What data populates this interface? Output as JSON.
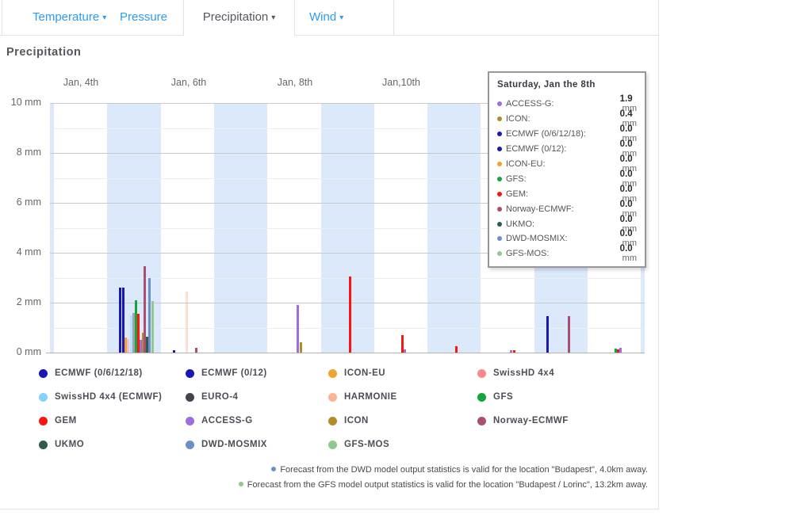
{
  "tabs": [
    {
      "label": "Temperature",
      "caret": "▾",
      "active": false
    },
    {
      "label": "Pressure",
      "caret": "",
      "active": false
    },
    {
      "label": "Precipitation",
      "caret": "▾",
      "active": true
    },
    {
      "label": "Wind",
      "caret": "▾",
      "active": false
    }
  ],
  "page_title": "Precipitation",
  "chart_data": {
    "type": "bar",
    "title": "Precipitation",
    "unit": "mm",
    "ylim": [
      0,
      10
    ],
    "y_ticks": [
      {
        "label": "10 mm",
        "mm": 10
      },
      {
        "label": "8 mm",
        "mm": 8
      },
      {
        "label": "6 mm",
        "mm": 6
      },
      {
        "label": "4 mm",
        "mm": 4
      },
      {
        "label": "2 mm",
        "mm": 2
      },
      {
        "label": "0 mm",
        "mm": 0
      }
    ],
    "x_labels": [
      {
        "text": "Jan, 4th",
        "x": 102
      },
      {
        "text": "Jan, 6th",
        "x": 238
      },
      {
        "text": "Jan, 8th",
        "x": 372
      },
      {
        "text": "Jan,10th",
        "x": 506
      }
    ],
    "grid": true,
    "day_band_color": "#dbe9fb",
    "models": {
      "ECMWF (0/6/12/18)": {
        "color": "#1a17b5",
        "pale": false
      },
      "ECMWF (0/12)": {
        "color": "#1a17b5",
        "pale": false
      },
      "ICON-EU": {
        "color": "#f0a32f",
        "pale": false
      },
      "SwissHD 4x4": {
        "color": "#fa8a8a",
        "pale": true
      },
      "SwissHD 4x4 (ECMWF)": {
        "color": "#85d2f8",
        "pale": true
      },
      "EURO-4": {
        "color": "#41454d",
        "pale": true
      },
      "HARMONIE": {
        "color": "#fcb392",
        "pale": true
      },
      "GFS": {
        "color": "#14a53c",
        "pale": false
      },
      "GEM": {
        "color": "#fb1511",
        "pale": false
      },
      "ACCESS-G": {
        "color": "#9c6ede",
        "pale": false
      },
      "ICON": {
        "color": "#b38b28",
        "pale": false
      },
      "Norway-ECMWF": {
        "color": "#a94f70",
        "pale": false
      },
      "UKMO": {
        "color": "#2d5c4a",
        "pale": false
      },
      "DWD-MOSMIX": {
        "color": "#6d8ec9",
        "pale": false
      },
      "GFS-MOS": {
        "color": "#8fc98d",
        "pale": false
      }
    },
    "bars": [
      {
        "x": 151,
        "model": "ECMWF (0/6/12/18)",
        "value_mm": 2.6
      },
      {
        "x": 155,
        "model": "ECMWF (0/12)",
        "value_mm": 2.6
      },
      {
        "x": 158,
        "model": "ICON-EU",
        "value_mm": 0.6
      },
      {
        "x": 161,
        "model": "SwissHD 4x4",
        "value_mm": 0.55
      },
      {
        "x": 165,
        "model": "SwissHD 4x4 (ECMWF)",
        "value_mm": 1.5
      },
      {
        "x": 168,
        "model": "EURO-4",
        "value_mm": 1.6
      },
      {
        "x": 171,
        "model": "GFS",
        "value_mm": 2.1
      },
      {
        "x": 174.5,
        "model": "GEM",
        "value_mm": 1.55
      },
      {
        "x": 177.5,
        "model": "ACCESS-G",
        "value_mm": 0.5
      },
      {
        "x": 180,
        "model": "ICON",
        "value_mm": 0.8
      },
      {
        "x": 182.5,
        "model": "Norway-ECMWF",
        "value_mm": 3.45
      },
      {
        "x": 185.5,
        "model": "UKMO",
        "value_mm": 0.65
      },
      {
        "x": 188.5,
        "model": "DWD-MOSMIX",
        "value_mm": 3.0
      },
      {
        "x": 192,
        "model": "GFS-MOS",
        "value_mm": 2.05
      },
      {
        "x": 219,
        "model": "ECMWF (0/6/12/18)",
        "value_mm": 0.1
      },
      {
        "x": 235,
        "model": "HARMONIE",
        "value_mm": 2.45
      },
      {
        "x": 247,
        "model": "Norway-ECMWF",
        "value_mm": 0.2
      },
      {
        "x": 375,
        "model": "ACCESS-G",
        "value_mm": 1.9
      },
      {
        "x": 379,
        "model": "ICON",
        "value_mm": 0.4
      },
      {
        "x": 441,
        "model": "GEM",
        "value_mm": 3.05
      },
      {
        "x": 507,
        "model": "GEM",
        "value_mm": 0.7
      },
      {
        "x": 510.5,
        "model": "ACCESS-G",
        "value_mm": 0.12
      },
      {
        "x": 575,
        "model": "GEM",
        "value_mm": 0.25
      },
      {
        "x": 644,
        "model": "ACCESS-G",
        "value_mm": 0.1
      },
      {
        "x": 648,
        "model": "GEM",
        "value_mm": 0.1
      },
      {
        "x": 690,
        "model": "ECMWF (0/12)",
        "value_mm": 1.45
      },
      {
        "x": 717,
        "model": "Norway-ECMWF",
        "value_mm": 1.45
      },
      {
        "x": 776,
        "model": "GFS",
        "value_mm": 0.15
      },
      {
        "x": 779,
        "model": "GEM",
        "value_mm": 0.12
      },
      {
        "x": 782,
        "model": "ACCESS-G",
        "value_mm": 0.2
      }
    ]
  },
  "tooltip": {
    "title": "Saturday, Jan the 8th",
    "unit": "mm",
    "rows": [
      {
        "model": "ACCESS-G",
        "value": "1.9"
      },
      {
        "model": "ICON",
        "value": "0.4"
      },
      {
        "model": "ECMWF (0/6/12/18)",
        "value": "0.0"
      },
      {
        "model": "ECMWF (0/12)",
        "value": "0.0"
      },
      {
        "model": "ICON-EU",
        "value": "0.0"
      },
      {
        "model": "GFS",
        "value": "0.0"
      },
      {
        "model": "GEM",
        "value": "0.0"
      },
      {
        "model": "Norway-ECMWF",
        "value": "0.0"
      },
      {
        "model": "UKMO",
        "value": "0.0"
      },
      {
        "model": "DWD-MOSMIX",
        "value": "0.0"
      },
      {
        "model": "GFS-MOS",
        "value": "0.0"
      }
    ]
  },
  "legend": [
    "ECMWF (0/6/12/18)",
    "ECMWF (0/12)",
    "ICON-EU",
    "SwissHD 4x4",
    "SwissHD 4x4 (ECMWF)",
    "EURO-4",
    "HARMONIE",
    "GFS",
    "GEM",
    "ACCESS-G",
    "ICON",
    "Norway-ECMWF",
    "UKMO",
    "DWD-MOSMIX",
    "GFS-MOS"
  ],
  "footnotes": [
    {
      "model": "DWD-MOSMIX",
      "text": "Forecast from the DWD model output statistics is valid for the location \"Budapest\", 4.0km away."
    },
    {
      "model": "GFS-MOS",
      "text": "Forecast from the GFS model output statistics is valid for the location \"Budapest / Lorinc\", 13.2km away."
    }
  ]
}
